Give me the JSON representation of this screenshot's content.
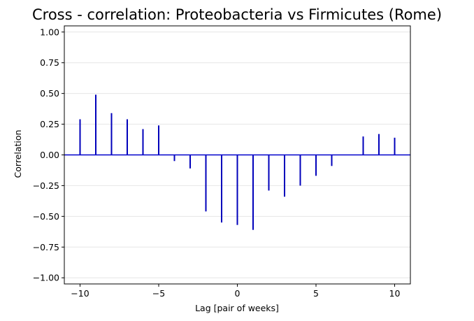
{
  "chart_data": {
    "type": "bar",
    "title": "Cross - correlation: Proteobacteria vs Firmicutes (Rome)",
    "xlabel": "Lag [pair of weeks]",
    "ylabel": "Correlation",
    "xlim": [
      -11,
      11
    ],
    "ylim": [
      -1.05,
      1.05
    ],
    "x_ticks": [
      -10,
      -5,
      0,
      5,
      10
    ],
    "x_tick_labels": [
      "−10",
      "−5",
      "0",
      "5",
      "10"
    ],
    "y_ticks": [
      -1.0,
      -0.75,
      -0.5,
      -0.25,
      0.0,
      0.25,
      0.5,
      0.75,
      1.0
    ],
    "y_tick_labels": [
      "−1.00",
      "−0.75",
      "−0.50",
      "−0.25",
      "0.00",
      "0.25",
      "0.50",
      "0.75",
      "1.00"
    ],
    "grid": "horizontal",
    "bar_color": "#0000bb",
    "zero_line_color": "#0000cc",
    "grid_color": "#e6e6e6",
    "lags": [
      -10,
      -9,
      -8,
      -7,
      -6,
      -5,
      -4,
      -3,
      -2,
      -1,
      0,
      1,
      2,
      3,
      4,
      5,
      6,
      7,
      8,
      9,
      10
    ],
    "values": [
      0.29,
      0.49,
      0.34,
      0.29,
      0.21,
      0.24,
      -0.05,
      -0.11,
      -0.46,
      -0.55,
      -0.57,
      -0.61,
      -0.29,
      -0.34,
      -0.25,
      -0.17,
      -0.09,
      0.0,
      0.15,
      0.17,
      0.14
    ]
  }
}
